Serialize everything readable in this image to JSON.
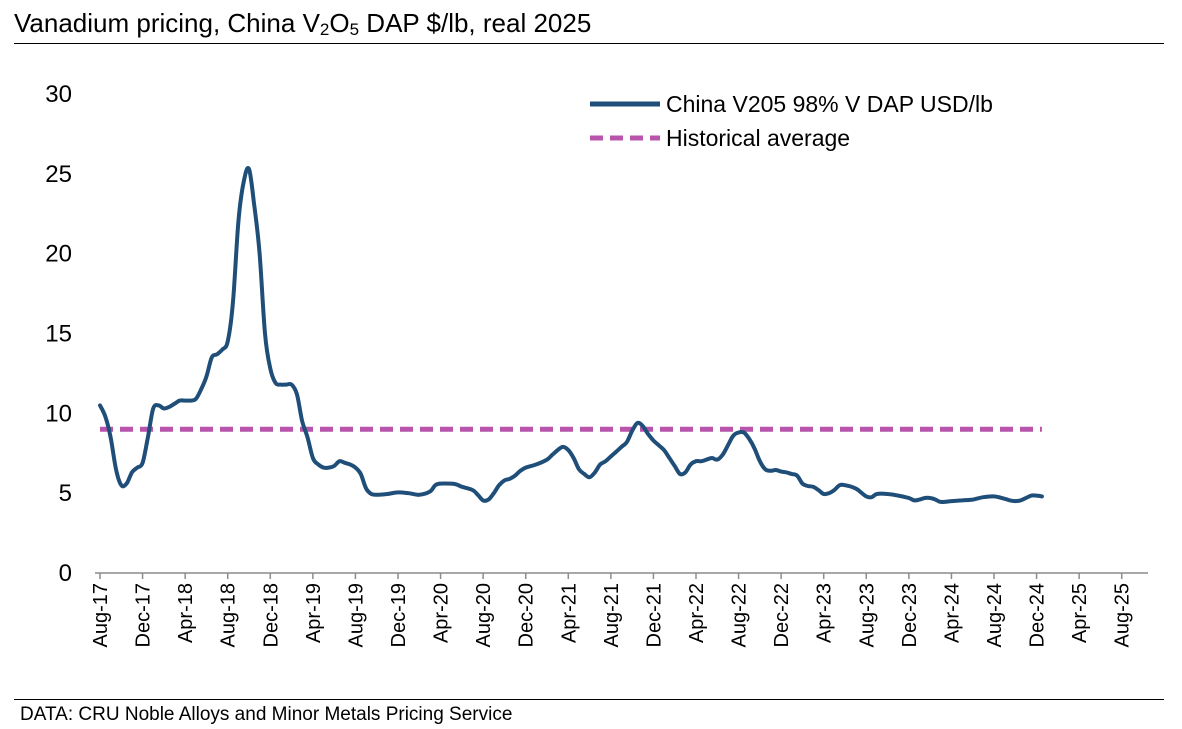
{
  "title_parts": {
    "t1": "Vanadium pricing, China V",
    "s1": "2",
    "t2": "O",
    "s2": "5",
    "t3": " DAP $/lb, real 2025"
  },
  "source": "DATA: CRU Noble Alloys and Minor Metals Pricing Service",
  "colors": {
    "price_line": "#1f4e79",
    "average_line": "#b854ab"
  },
  "chart_data": {
    "type": "line",
    "title": "Vanadium pricing, China V2O5 DAP $/lb, real 2025",
    "xlabel": "",
    "ylabel": "",
    "ylim": [
      0,
      30
    ],
    "yticks": [
      0,
      5,
      10,
      15,
      20,
      25,
      30
    ],
    "xtick_labels": [
      "Aug-17",
      "Dec-17",
      "Apr-18",
      "Aug-18",
      "Dec-18",
      "Apr-19",
      "Aug-19",
      "Dec-19",
      "Apr-20",
      "Aug-20",
      "Dec-20",
      "Apr-21",
      "Aug-21",
      "Dec-21",
      "Apr-22",
      "Aug-22",
      "Dec-22",
      "Apr-23",
      "Aug-23",
      "Dec-23",
      "Apr-24",
      "Aug-24",
      "Dec-24",
      "Apr-25",
      "Aug-25"
    ],
    "legend_position": "top-right",
    "x_months_from_aug17_range": [
      0,
      98
    ],
    "series": [
      {
        "name": "China V205 98% V DAP USD/lb",
        "style": "solid",
        "points": [
          [
            0,
            10.5
          ],
          [
            0.5,
            9.8
          ],
          [
            1,
            8.5
          ],
          [
            1.5,
            6.5
          ],
          [
            2,
            5.5
          ],
          [
            2.5,
            5.6
          ],
          [
            3,
            6.3
          ],
          [
            3.5,
            6.6
          ],
          [
            4,
            6.9
          ],
          [
            4.5,
            8.5
          ],
          [
            5,
            10.3
          ],
          [
            5.5,
            10.5
          ],
          [
            6,
            10.3
          ],
          [
            6.5,
            10.4
          ],
          [
            7,
            10.6
          ],
          [
            7.5,
            10.8
          ],
          [
            8,
            10.8
          ],
          [
            8.5,
            10.8
          ],
          [
            9,
            10.9
          ],
          [
            9.5,
            11.5
          ],
          [
            10,
            12.3
          ],
          [
            10.5,
            13.5
          ],
          [
            11,
            13.7
          ],
          [
            11.5,
            14
          ],
          [
            12,
            14.5
          ],
          [
            12.5,
            17
          ],
          [
            13,
            22
          ],
          [
            13.5,
            24.5
          ],
          [
            14,
            25.3
          ],
          [
            14.5,
            23
          ],
          [
            15,
            20
          ],
          [
            15.5,
            15
          ],
          [
            16,
            12.8
          ],
          [
            16.5,
            11.9
          ],
          [
            17,
            11.8
          ],
          [
            17.5,
            11.8
          ],
          [
            18,
            11.8
          ],
          [
            18.5,
            11.2
          ],
          [
            19,
            9.5
          ],
          [
            19.5,
            8.5
          ],
          [
            20,
            7.2
          ],
          [
            20.5,
            6.8
          ],
          [
            21,
            6.6
          ],
          [
            21.5,
            6.6
          ],
          [
            22,
            6.7
          ],
          [
            22.5,
            7.0
          ],
          [
            23,
            6.9
          ],
          [
            23.5,
            6.8
          ],
          [
            24,
            6.6
          ],
          [
            24.5,
            6.2
          ],
          [
            25,
            5.3
          ],
          [
            25.5,
            4.95
          ],
          [
            26,
            4.9
          ],
          [
            27,
            4.95
          ],
          [
            28,
            5.05
          ],
          [
            29,
            5.0
          ],
          [
            30,
            4.9
          ],
          [
            31,
            5.1
          ],
          [
            31.5,
            5.5
          ],
          [
            32,
            5.6
          ],
          [
            33,
            5.6
          ],
          [
            33.5,
            5.55
          ],
          [
            34,
            5.4
          ],
          [
            35,
            5.2
          ],
          [
            35.5,
            4.9
          ],
          [
            36,
            4.55
          ],
          [
            36.5,
            4.6
          ],
          [
            37,
            5.0
          ],
          [
            37.5,
            5.5
          ],
          [
            38,
            5.8
          ],
          [
            38.5,
            5.9
          ],
          [
            39,
            6.1
          ],
          [
            39.5,
            6.4
          ],
          [
            40,
            6.6
          ],
          [
            41,
            6.8
          ],
          [
            42,
            7.1
          ],
          [
            42.5,
            7.4
          ],
          [
            43,
            7.7
          ],
          [
            43.5,
            7.9
          ],
          [
            44,
            7.7
          ],
          [
            44.5,
            7.2
          ],
          [
            45,
            6.5
          ],
          [
            45.5,
            6.2
          ],
          [
            46,
            6.0
          ],
          [
            46.5,
            6.3
          ],
          [
            47,
            6.8
          ],
          [
            47.5,
            7.0
          ],
          [
            48,
            7.3
          ],
          [
            48.5,
            7.6
          ],
          [
            49,
            7.9
          ],
          [
            49.5,
            8.2
          ],
          [
            50,
            8.9
          ],
          [
            50.5,
            9.4
          ],
          [
            51,
            9.2
          ],
          [
            51.5,
            8.7
          ],
          [
            52,
            8.3
          ],
          [
            52.5,
            8.0
          ],
          [
            53,
            7.7
          ],
          [
            53.5,
            7.2
          ],
          [
            54,
            6.7
          ],
          [
            54.5,
            6.2
          ],
          [
            55,
            6.3
          ],
          [
            55.5,
            6.8
          ],
          [
            56,
            7.0
          ],
          [
            56.5,
            7.0
          ],
          [
            57,
            7.1
          ],
          [
            57.5,
            7.2
          ],
          [
            58,
            7.1
          ],
          [
            58.5,
            7.4
          ],
          [
            59,
            8.0
          ],
          [
            59.5,
            8.6
          ],
          [
            60,
            8.8
          ],
          [
            60.5,
            8.8
          ],
          [
            61,
            8.4
          ],
          [
            61.5,
            7.8
          ],
          [
            62,
            7.0
          ],
          [
            62.5,
            6.5
          ],
          [
            63,
            6.4
          ],
          [
            63.5,
            6.45
          ],
          [
            64,
            6.35
          ],
          [
            64.5,
            6.3
          ],
          [
            65,
            6.2
          ],
          [
            65.5,
            6.1
          ],
          [
            66,
            5.6
          ],
          [
            66.5,
            5.45
          ],
          [
            67,
            5.4
          ],
          [
            67.5,
            5.2
          ],
          [
            68,
            4.95
          ],
          [
            68.5,
            5.0
          ],
          [
            69,
            5.2
          ],
          [
            69.5,
            5.5
          ],
          [
            70,
            5.5
          ],
          [
            71,
            5.3
          ],
          [
            71.5,
            5.05
          ],
          [
            72,
            4.8
          ],
          [
            72.5,
            4.75
          ],
          [
            73,
            4.95
          ],
          [
            74,
            4.95
          ],
          [
            75,
            4.85
          ],
          [
            76,
            4.7
          ],
          [
            76.5,
            4.55
          ],
          [
            77,
            4.6
          ],
          [
            77.5,
            4.7
          ],
          [
            78,
            4.7
          ],
          [
            78.5,
            4.6
          ],
          [
            79,
            4.45
          ],
          [
            80,
            4.5
          ],
          [
            81,
            4.55
          ],
          [
            82,
            4.6
          ],
          [
            83,
            4.75
          ],
          [
            84,
            4.8
          ],
          [
            85,
            4.65
          ],
          [
            85.5,
            4.55
          ],
          [
            86,
            4.5
          ],
          [
            86.5,
            4.55
          ],
          [
            87,
            4.7
          ],
          [
            87.5,
            4.85
          ],
          [
            88,
            4.85
          ],
          [
            88.5,
            4.8
          ]
        ]
      },
      {
        "name": "Historical average",
        "style": "dashed",
        "points": [
          [
            0,
            9.0
          ],
          [
            88.5,
            9.0
          ]
        ]
      }
    ]
  }
}
